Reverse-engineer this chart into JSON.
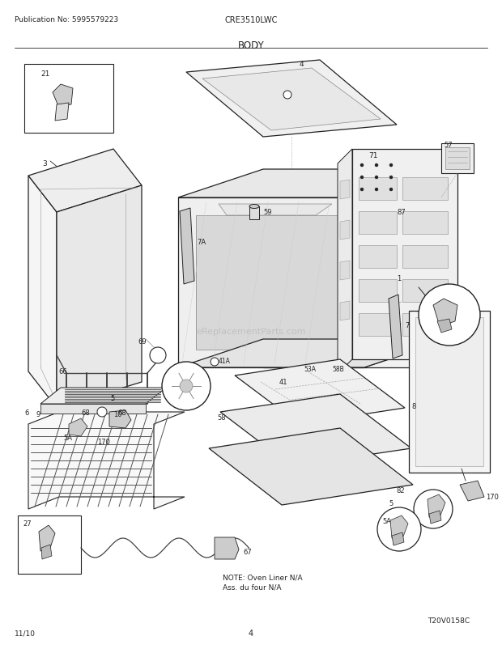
{
  "pub_no": "Publication No: 5995579223",
  "model": "CRE3510LWC",
  "title": "BODY",
  "page": "4",
  "date": "11/10",
  "watermark": "eReplacementParts.com",
  "diagram_code": "T20V0158C",
  "note_line1": "NOTE: Oven Liner N/A",
  "note_line2": "Ass. du four N/A",
  "bg_color": "#ffffff",
  "lc": "#222222",
  "lc_light": "#888888"
}
